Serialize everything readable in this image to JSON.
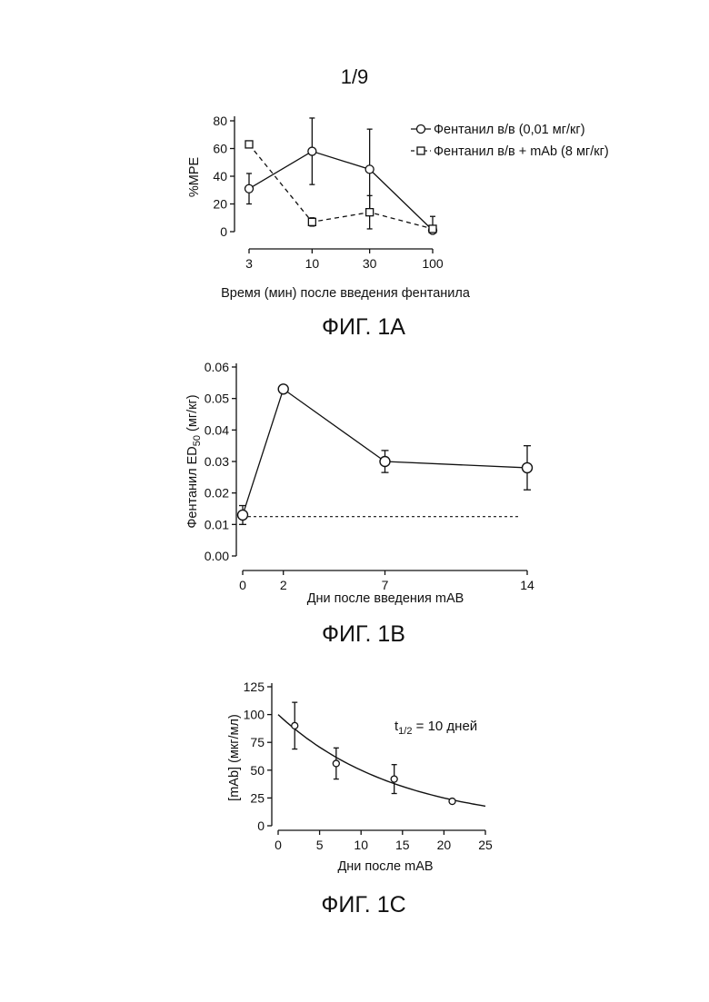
{
  "page_number": "1/9",
  "chart_data": [
    {
      "type": "line",
      "caption": "ФИГ. 1А",
      "xlabel": "Время (мин) после введения фентанила",
      "ylabel": "%MPE",
      "x_scale": "log",
      "categories": [
        "3",
        "10",
        "30",
        "100"
      ],
      "x": [
        3,
        10,
        30,
        100
      ],
      "ylim": [
        0,
        80
      ],
      "y_ticks": [
        "0",
        "20",
        "40",
        "60",
        "80"
      ],
      "legend_position": "top-right",
      "grid": false,
      "series": [
        {
          "name": "Фентанил в/в (0,01 мг/кг)",
          "marker": "circle",
          "line": "solid",
          "values": [
            31,
            58,
            45,
            1
          ],
          "error": [
            11,
            24,
            29,
            10
          ]
        },
        {
          "name": "Фентанил в/в + mAb (8 мг/кг)",
          "marker": "square",
          "line": "dashed",
          "values": [
            63,
            7,
            14,
            2
          ],
          "error": [
            0,
            3,
            12,
            0
          ]
        }
      ]
    },
    {
      "type": "line",
      "caption": "ФИГ. 1В",
      "xlabel": "Дни после введения mAB",
      "ylabel_main": "Фентанил ED",
      "ylabel_sub": "50",
      "ylabel_tail": " (мг/кг)",
      "x": [
        0,
        2,
        7,
        14
      ],
      "x_ticks": [
        "0",
        "2",
        "7",
        "14"
      ],
      "xlim": [
        0,
        14
      ],
      "ylim": [
        0,
        0.06
      ],
      "y_ticks": [
        "0.00",
        "0.01",
        "0.02",
        "0.03",
        "0.04",
        "0.05",
        "0.06"
      ],
      "grid": false,
      "reference_line": 0.0125,
      "series": [
        {
          "marker": "circle",
          "line": "solid",
          "values": [
            0.013,
            0.053,
            0.03,
            0.028
          ],
          "error": [
            0.003,
            0,
            0.0035,
            0.007
          ]
        }
      ]
    },
    {
      "type": "scatter",
      "caption": "ФИГ. 1С",
      "xlabel": "Дни после mAB",
      "ylabel": "[mAb] (мкг/мл)",
      "annotation_main": "t",
      "annotation_sub": "1/2",
      "annotation_tail": " = 10 дней",
      "xlim": [
        0,
        25
      ],
      "ylim": [
        0,
        125
      ],
      "x_ticks": [
        "0",
        "5",
        "10",
        "15",
        "20",
        "25"
      ],
      "y_ticks": [
        "0",
        "25",
        "50",
        "75",
        "100",
        "125"
      ],
      "grid": false,
      "points": {
        "x": [
          2,
          7,
          14,
          21
        ],
        "y": [
          90,
          56,
          42,
          22
        ],
        "error": [
          21,
          14,
          13,
          0
        ]
      },
      "fit": {
        "y0": 100,
        "half_life": 10,
        "x_range": [
          0,
          25
        ]
      }
    }
  ]
}
